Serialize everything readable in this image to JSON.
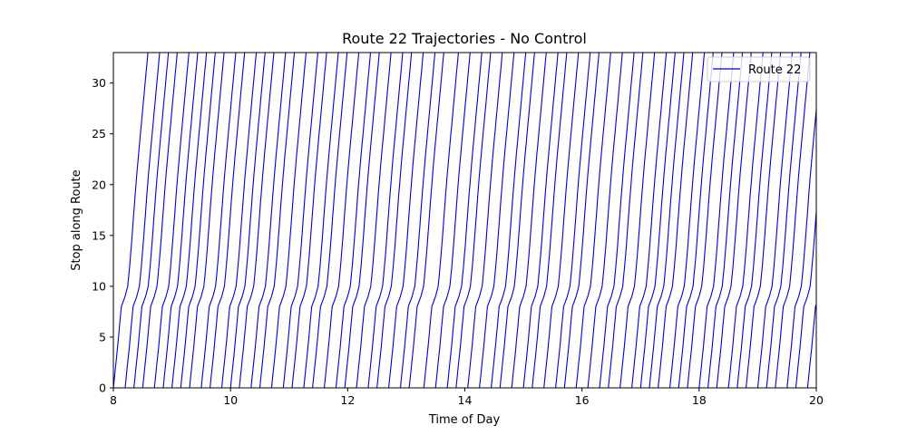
{
  "chart_data": {
    "type": "line",
    "title": "Route 22 Trajectories - No Control",
    "xlabel": "Time of Day",
    "ylabel": "Stop along Route",
    "xlim": [
      8,
      20
    ],
    "ylim": [
      0,
      33
    ],
    "xticks": [
      8,
      10,
      12,
      14,
      16,
      18,
      20
    ],
    "yticks": [
      0,
      5,
      10,
      15,
      20,
      25,
      30
    ],
    "grid": false,
    "legend": {
      "position": "top-right",
      "entries": [
        "Route 22"
      ]
    },
    "line_color": "#0000cd",
    "series": [
      {
        "name": "Route 22",
        "trip_start_times": [
          8.0,
          8.2,
          8.35,
          8.5,
          8.7,
          8.85,
          9.0,
          9.15,
          9.3,
          9.5,
          9.65,
          9.85,
          10.0,
          10.15,
          10.35,
          10.5,
          10.7,
          10.9,
          11.05,
          11.25,
          11.4,
          11.6,
          11.8,
          11.95,
          12.15,
          12.35,
          12.5,
          12.7,
          12.9,
          13.05,
          13.3,
          13.5,
          13.7,
          13.85,
          14.05,
          14.25,
          14.45,
          14.6,
          14.8,
          15.0,
          15.15,
          15.35,
          15.55,
          15.7,
          15.9,
          16.1,
          16.3,
          16.45,
          16.65,
          16.85,
          17.0,
          17.15,
          17.3,
          17.5,
          17.65,
          17.8,
          18.0,
          18.15,
          18.3,
          18.5,
          18.65,
          18.8,
          19.0,
          19.15,
          19.3,
          19.5,
          19.65,
          19.85,
          20.0
        ],
        "stop_offsets": [
          0,
          1,
          2,
          3,
          4,
          5,
          6,
          7,
          8,
          9,
          10,
          11,
          12,
          13,
          14,
          15,
          16,
          17,
          18,
          19,
          20,
          21,
          22,
          23,
          24,
          25,
          26,
          27,
          28,
          29,
          30,
          31,
          32,
          33
        ],
        "offset_hours": [
          0,
          0.018,
          0.036,
          0.054,
          0.072,
          0.088,
          0.104,
          0.12,
          0.136,
          0.2,
          0.245,
          0.262,
          0.278,
          0.293,
          0.307,
          0.32,
          0.333,
          0.346,
          0.359,
          0.372,
          0.386,
          0.4,
          0.415,
          0.43,
          0.446,
          0.462,
          0.478,
          0.494,
          0.51,
          0.526,
          0.542,
          0.558,
          0.574,
          0.59
        ]
      }
    ]
  }
}
